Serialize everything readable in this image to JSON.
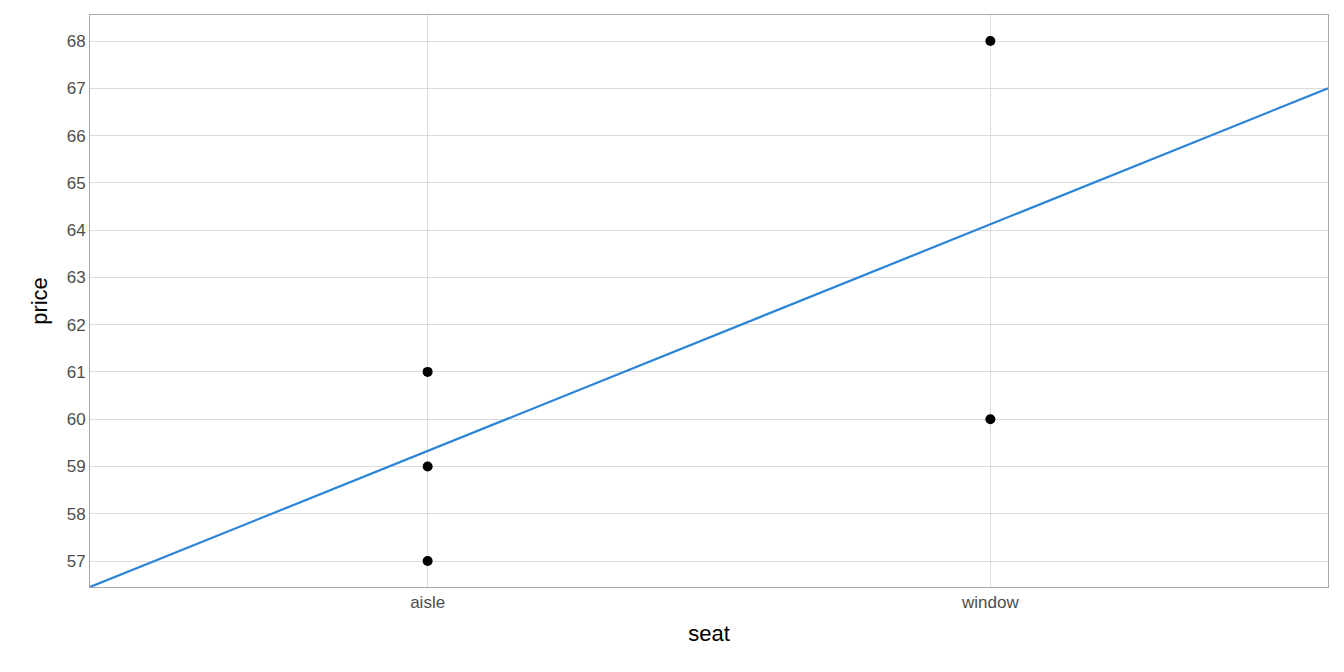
{
  "chart_data": {
    "type": "scatter",
    "x_label": "seat",
    "y_label": "price",
    "xlim": [
      0.4,
      2.6
    ],
    "xticks": [
      {
        "value": 1,
        "label": "aisle"
      },
      {
        "value": 2,
        "label": "window"
      }
    ],
    "ylim": [
      56.45,
      68.55
    ],
    "yticks": [
      57,
      58,
      59,
      60,
      61,
      62,
      63,
      64,
      65,
      66,
      67,
      68
    ],
    "grid": true,
    "series": [
      {
        "type": "scatter",
        "color": "#000000",
        "marker": "circle",
        "x": [
          1,
          1,
          1,
          2,
          2
        ],
        "values": [
          61,
          59,
          57,
          68,
          60
        ]
      },
      {
        "type": "line",
        "color": "#2a84d8",
        "line_style": "solid",
        "x": [
          0.4,
          2.6
        ],
        "values": [
          56.45,
          67.0
        ]
      }
    ]
  }
}
